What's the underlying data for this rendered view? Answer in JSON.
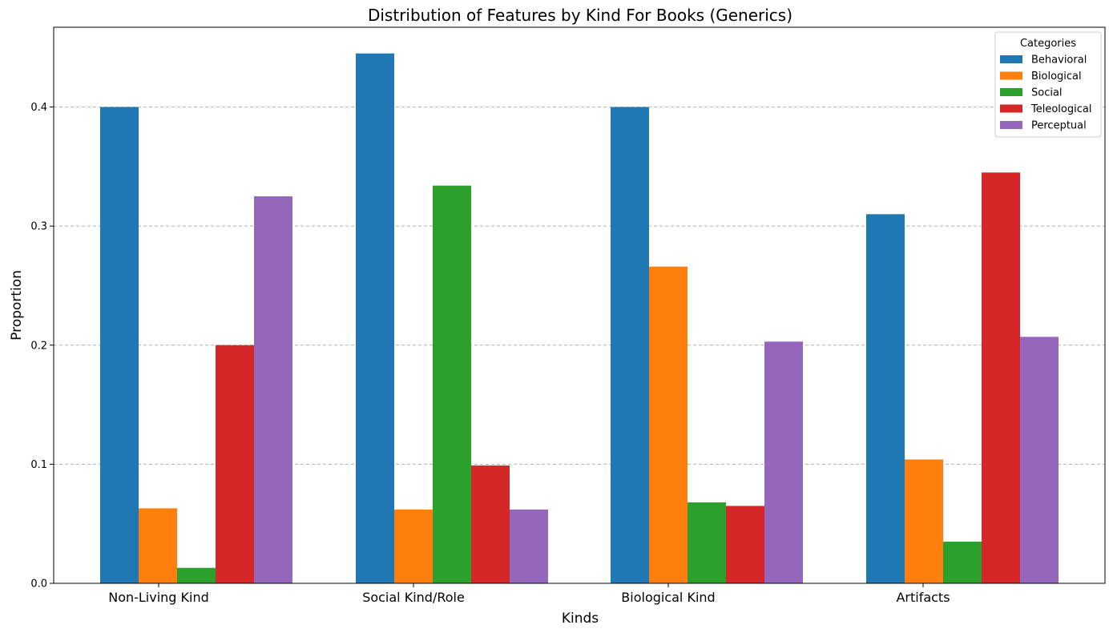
{
  "chart_data": {
    "type": "bar",
    "title": "Distribution of Features by Kind For Books (Generics)",
    "xlabel": "Kinds",
    "ylabel": "Proportion",
    "categories": [
      "Non-Living Kind",
      "Social Kind/Role",
      "Biological Kind",
      "Artifacts"
    ],
    "ylim": [
      0,
      0.467
    ],
    "yticks": [
      0.0,
      0.1,
      0.2,
      0.3,
      0.4
    ],
    "ytick_labels": [
      "0.0",
      "0.1",
      "0.2",
      "0.3",
      "0.4"
    ],
    "grid": "y-dashed",
    "legend": {
      "title": "Categories",
      "placement": "top-right"
    },
    "series": [
      {
        "name": "Behavioral",
        "color": "#1f77b4",
        "values": [
          0.4,
          0.445,
          0.4,
          0.31
        ]
      },
      {
        "name": "Biological",
        "color": "#ff7f0e",
        "values": [
          0.063,
          0.062,
          0.266,
          0.104
        ]
      },
      {
        "name": "Social",
        "color": "#2ca02c",
        "values": [
          0.013,
          0.334,
          0.068,
          0.035
        ]
      },
      {
        "name": "Teleological",
        "color": "#d62728",
        "values": [
          0.2,
          0.099,
          0.065,
          0.345
        ]
      },
      {
        "name": "Perceptual",
        "color": "#9467bd",
        "values": [
          0.325,
          0.062,
          0.203,
          0.207
        ]
      }
    ]
  }
}
